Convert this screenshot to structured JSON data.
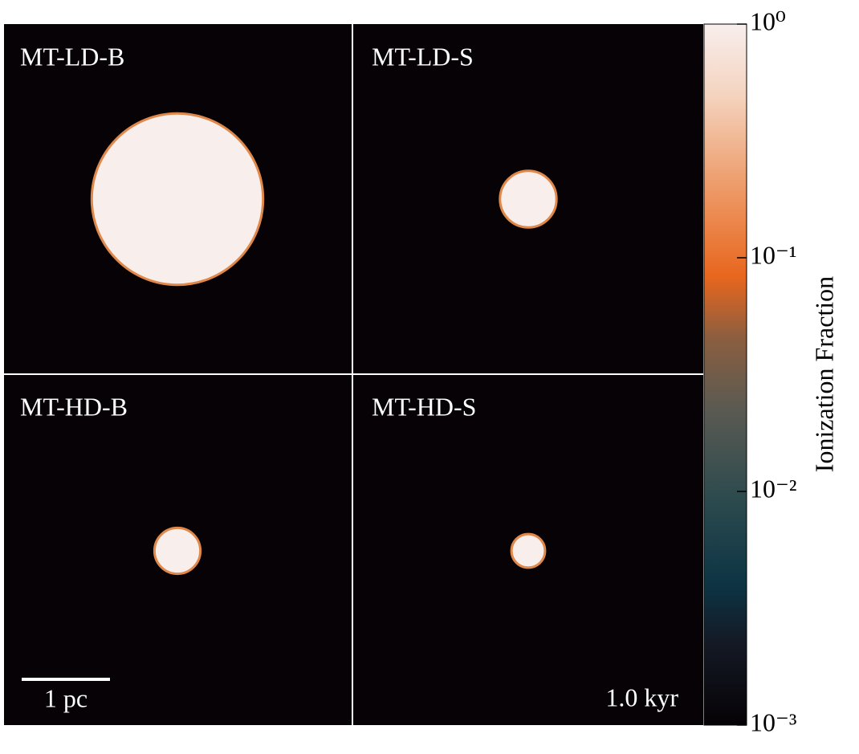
{
  "chart_data": {
    "type": "image-grid",
    "panels": [
      {
        "name": "MT-LD-B",
        "radius": 0.97
      },
      {
        "name": "MT-LD-S",
        "radius": 0.32
      },
      {
        "name": "MT-HD-B",
        "radius": 0.26
      },
      {
        "name": "MT-HD-S",
        "radius": 0.19
      }
    ],
    "scale_bar": {
      "length": 1,
      "label": "1 pc"
    },
    "time_label": "1.0 kyr",
    "colorbar": {
      "label": "Ionization Fraction",
      "log": true,
      "ylim": [
        0.001,
        1
      ],
      "yticks": [
        {
          "value": 1,
          "label": "10⁰"
        },
        {
          "value": 0.1,
          "label": "10⁻¹"
        },
        {
          "value": 0.01,
          "label": "10⁻²"
        },
        {
          "value": 0.001,
          "label": "10⁻³"
        }
      ]
    }
  }
}
